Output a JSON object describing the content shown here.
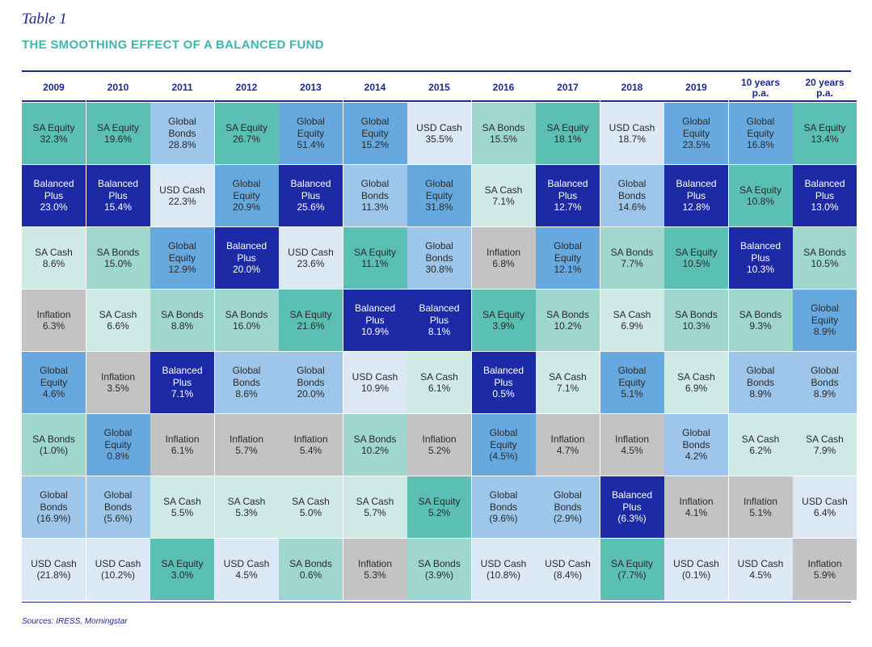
{
  "table_label": "Table 1",
  "title": "THE SMOOTHING EFFECT OF A BALANCED FUND",
  "sources": "Sources: IRESS, Morningstar",
  "colors": {
    "SA Equity": "#5cbfb3",
    "Balanced Plus": "#1c2aa5",
    "SA Cash": "#cfeae5",
    "Inflation": "#c3c3c3",
    "Global Equity": "#67a9df",
    "SA Bonds": "#9fd6ce",
    "Global Bonds": "#9dc6ea",
    "USD Cash": "#dde8f6"
  },
  "columns": [
    "2009",
    "2010",
    "2011",
    "2012",
    "2013",
    "2014",
    "2015",
    "2016",
    "2017",
    "2018",
    "2019",
    "10 years\np.a.",
    "20 years\np.a."
  ],
  "rows": [
    [
      {
        "asset": "SA Equity",
        "label": "SA Equity",
        "value": "32.3%"
      },
      {
        "asset": "SA Equity",
        "label": "SA Equity",
        "value": "19.6%"
      },
      {
        "asset": "Global Bonds",
        "label": "Global\nBonds",
        "value": "28.8%"
      },
      {
        "asset": "SA Equity",
        "label": "SA Equity",
        "value": "26.7%"
      },
      {
        "asset": "Global Equity",
        "label": "Global\nEquity",
        "value": "51.4%"
      },
      {
        "asset": "Global Equity",
        "label": "Global\nEquity",
        "value": "15.2%"
      },
      {
        "asset": "USD Cash",
        "label": "USD Cash",
        "value": "35.5%"
      },
      {
        "asset": "SA Bonds",
        "label": "SA Bonds",
        "value": "15.5%"
      },
      {
        "asset": "SA Equity",
        "label": "SA Equity",
        "value": "18.1%"
      },
      {
        "asset": "USD Cash",
        "label": "USD Cash",
        "value": "18.7%"
      },
      {
        "asset": "Global Equity",
        "label": "Global\nEquity",
        "value": "23.5%"
      },
      {
        "asset": "Global Equity",
        "label": "Global\nEquity",
        "value": "16.8%"
      },
      {
        "asset": "SA Equity",
        "label": "SA Equity",
        "value": "13.4%"
      }
    ],
    [
      {
        "asset": "Balanced Plus",
        "label": "Balanced\nPlus",
        "value": "23.0%"
      },
      {
        "asset": "Balanced Plus",
        "label": "Balanced\nPlus",
        "value": "15.4%"
      },
      {
        "asset": "USD Cash",
        "label": "USD Cash",
        "value": "22.3%"
      },
      {
        "asset": "Global Equity",
        "label": "Global\nEquity",
        "value": "20.9%"
      },
      {
        "asset": "Balanced Plus",
        "label": "Balanced\nPlus",
        "value": "25.6%"
      },
      {
        "asset": "Global Bonds",
        "label": "Global\nBonds",
        "value": "11.3%"
      },
      {
        "asset": "Global Equity",
        "label": "Global\nEquity",
        "value": "31.8%"
      },
      {
        "asset": "SA Cash",
        "label": "SA Cash",
        "value": "7.1%"
      },
      {
        "asset": "Balanced Plus",
        "label": "Balanced\nPlus",
        "value": "12.7%"
      },
      {
        "asset": "Global Bonds",
        "label": "Global\nBonds",
        "value": "14.6%"
      },
      {
        "asset": "Balanced Plus",
        "label": "Balanced\nPlus",
        "value": "12.8%"
      },
      {
        "asset": "SA Equity",
        "label": "SA Equity",
        "value": "10.8%"
      },
      {
        "asset": "Balanced Plus",
        "label": "Balanced\nPlus",
        "value": "13.0%"
      }
    ],
    [
      {
        "asset": "SA Cash",
        "label": "SA Cash",
        "value": "8.6%"
      },
      {
        "asset": "SA Bonds",
        "label": "SA Bonds",
        "value": "15.0%"
      },
      {
        "asset": "Global Equity",
        "label": "Global\nEquity",
        "value": "12.9%"
      },
      {
        "asset": "Balanced Plus",
        "label": "Balanced\nPlus",
        "value": "20.0%"
      },
      {
        "asset": "USD Cash",
        "label": "USD Cash",
        "value": "23.6%"
      },
      {
        "asset": "SA Equity",
        "label": "SA Equity",
        "value": "11.1%"
      },
      {
        "asset": "Global Bonds",
        "label": "Global\nBonds",
        "value": "30.8%"
      },
      {
        "asset": "Inflation",
        "label": "Inflation",
        "value": "6.8%"
      },
      {
        "asset": "Global Equity",
        "label": "Global\nEquity",
        "value": "12.1%"
      },
      {
        "asset": "SA Bonds",
        "label": "SA Bonds",
        "value": "7.7%"
      },
      {
        "asset": "SA Equity",
        "label": "SA Equity",
        "value": "10.5%"
      },
      {
        "asset": "Balanced Plus",
        "label": "Balanced\nPlus",
        "value": "10.3%"
      },
      {
        "asset": "SA Bonds",
        "label": "SA Bonds",
        "value": "10.5%"
      }
    ],
    [
      {
        "asset": "Inflation",
        "label": "Inflation",
        "value": "6.3%"
      },
      {
        "asset": "SA Cash",
        "label": "SA Cash",
        "value": "6.6%"
      },
      {
        "asset": "SA Bonds",
        "label": "SA Bonds",
        "value": "8.8%"
      },
      {
        "asset": "SA Bonds",
        "label": "SA Bonds",
        "value": "16.0%"
      },
      {
        "asset": "SA Equity",
        "label": "SA Equity",
        "value": "21.6%"
      },
      {
        "asset": "Balanced Plus",
        "label": "Balanced\nPlus",
        "value": "10.9%"
      },
      {
        "asset": "Balanced Plus",
        "label": "Balanced\nPlus",
        "value": "8.1%"
      },
      {
        "asset": "SA Equity",
        "label": "SA Equity",
        "value": "3.9%"
      },
      {
        "asset": "SA Bonds",
        "label": "SA Bonds",
        "value": "10.2%"
      },
      {
        "asset": "SA Cash",
        "label": "SA Cash",
        "value": "6.9%"
      },
      {
        "asset": "SA Bonds",
        "label": "SA Bonds",
        "value": "10.3%"
      },
      {
        "asset": "SA Bonds",
        "label": "SA Bonds",
        "value": "9.3%"
      },
      {
        "asset": "Global Equity",
        "label": "Global\nEquity",
        "value": "8.9%"
      }
    ],
    [
      {
        "asset": "Global Equity",
        "label": "Global\nEquity",
        "value": "4.6%"
      },
      {
        "asset": "Inflation",
        "label": "Inflation",
        "value": "3.5%"
      },
      {
        "asset": "Balanced Plus",
        "label": "Balanced\nPlus",
        "value": "7.1%"
      },
      {
        "asset": "Global Bonds",
        "label": "Global\nBonds",
        "value": "8.6%"
      },
      {
        "asset": "Global Bonds",
        "label": "Global\nBonds",
        "value": "20.0%"
      },
      {
        "asset": "USD Cash",
        "label": "USD Cash",
        "value": "10.9%"
      },
      {
        "asset": "SA Cash",
        "label": "SA Cash",
        "value": "6.1%"
      },
      {
        "asset": "Balanced Plus",
        "label": "Balanced\nPlus",
        "value": "0.5%"
      },
      {
        "asset": "SA Cash",
        "label": "SA Cash",
        "value": "7.1%"
      },
      {
        "asset": "Global Equity",
        "label": "Global\nEquity",
        "value": "5.1%"
      },
      {
        "asset": "SA Cash",
        "label": "SA Cash",
        "value": "6.9%"
      },
      {
        "asset": "Global Bonds",
        "label": "Global\nBonds",
        "value": "8.9%"
      },
      {
        "asset": "Global Bonds",
        "label": "Global\nBonds",
        "value": "8.9%"
      }
    ],
    [
      {
        "asset": "SA Bonds",
        "label": "SA Bonds",
        "value": "(1.0%)"
      },
      {
        "asset": "Global Equity",
        "label": "Global\nEquity",
        "value": "0.8%"
      },
      {
        "asset": "Inflation",
        "label": "Inflation",
        "value": "6.1%"
      },
      {
        "asset": "Inflation",
        "label": "Inflation",
        "value": "5.7%"
      },
      {
        "asset": "Inflation",
        "label": "Inflation",
        "value": "5.4%"
      },
      {
        "asset": "SA Bonds",
        "label": "SA Bonds",
        "value": "10.2%"
      },
      {
        "asset": "Inflation",
        "label": "Inflation",
        "value": "5.2%"
      },
      {
        "asset": "Global Equity",
        "label": "Global\nEquity",
        "value": "(4.5%)"
      },
      {
        "asset": "Inflation",
        "label": "Inflation",
        "value": "4.7%"
      },
      {
        "asset": "Inflation",
        "label": "Inflation",
        "value": "4.5%"
      },
      {
        "asset": "Global Bonds",
        "label": "Global\nBonds",
        "value": "4.2%"
      },
      {
        "asset": "SA Cash",
        "label": "SA Cash",
        "value": "6.2%"
      },
      {
        "asset": "SA Cash",
        "label": "SA Cash",
        "value": "7.9%"
      }
    ],
    [
      {
        "asset": "Global Bonds",
        "label": "Global\nBonds",
        "value": "(16.9%)"
      },
      {
        "asset": "Global Bonds",
        "label": "Global\nBonds",
        "value": "(5.6%)"
      },
      {
        "asset": "SA Cash",
        "label": "SA Cash",
        "value": "5.5%"
      },
      {
        "asset": "SA Cash",
        "label": "SA Cash",
        "value": "5.3%"
      },
      {
        "asset": "SA Cash",
        "label": "SA Cash",
        "value": "5.0%"
      },
      {
        "asset": "SA Cash",
        "label": "SA Cash",
        "value": "5.7%"
      },
      {
        "asset": "SA Equity",
        "label": "SA Equity",
        "value": "5.2%"
      },
      {
        "asset": "Global Bonds",
        "label": "Global\nBonds",
        "value": "(9.6%)"
      },
      {
        "asset": "Global Bonds",
        "label": "Global\nBonds",
        "value": "(2.9%)"
      },
      {
        "asset": "Balanced Plus",
        "label": "Balanced\nPlus",
        "value": "(6.3%)"
      },
      {
        "asset": "Inflation",
        "label": "Inflation",
        "value": "4.1%"
      },
      {
        "asset": "Inflation",
        "label": "Inflation",
        "value": "5.1%"
      },
      {
        "asset": "USD Cash",
        "label": "USD Cash",
        "value": "6.4%"
      }
    ],
    [
      {
        "asset": "USD Cash",
        "label": "USD Cash",
        "value": "(21.8%)"
      },
      {
        "asset": "USD Cash",
        "label": "USD Cash",
        "value": "(10.2%)"
      },
      {
        "asset": "SA Equity",
        "label": "SA Equity",
        "value": "3.0%"
      },
      {
        "asset": "USD Cash",
        "label": "USD Cash",
        "value": "4.5%"
      },
      {
        "asset": "SA Bonds",
        "label": "SA Bonds",
        "value": "0.6%"
      },
      {
        "asset": "Inflation",
        "label": "Inflation",
        "value": "5.3%"
      },
      {
        "asset": "SA Bonds",
        "label": "SA Bonds",
        "value": "(3.9%)"
      },
      {
        "asset": "USD Cash",
        "label": "USD Cash",
        "value": "(10.8%)"
      },
      {
        "asset": "USD Cash",
        "label": "USD Cash",
        "value": "(8.4%)"
      },
      {
        "asset": "SA Equity",
        "label": "SA Equity",
        "value": "(7.7%)"
      },
      {
        "asset": "USD Cash",
        "label": "USD Cash",
        "value": "(0.1%)"
      },
      {
        "asset": "USD Cash",
        "label": "USD Cash",
        "value": "4.5%"
      },
      {
        "asset": "Inflation",
        "label": "Inflation",
        "value": "5.9%"
      }
    ]
  ]
}
